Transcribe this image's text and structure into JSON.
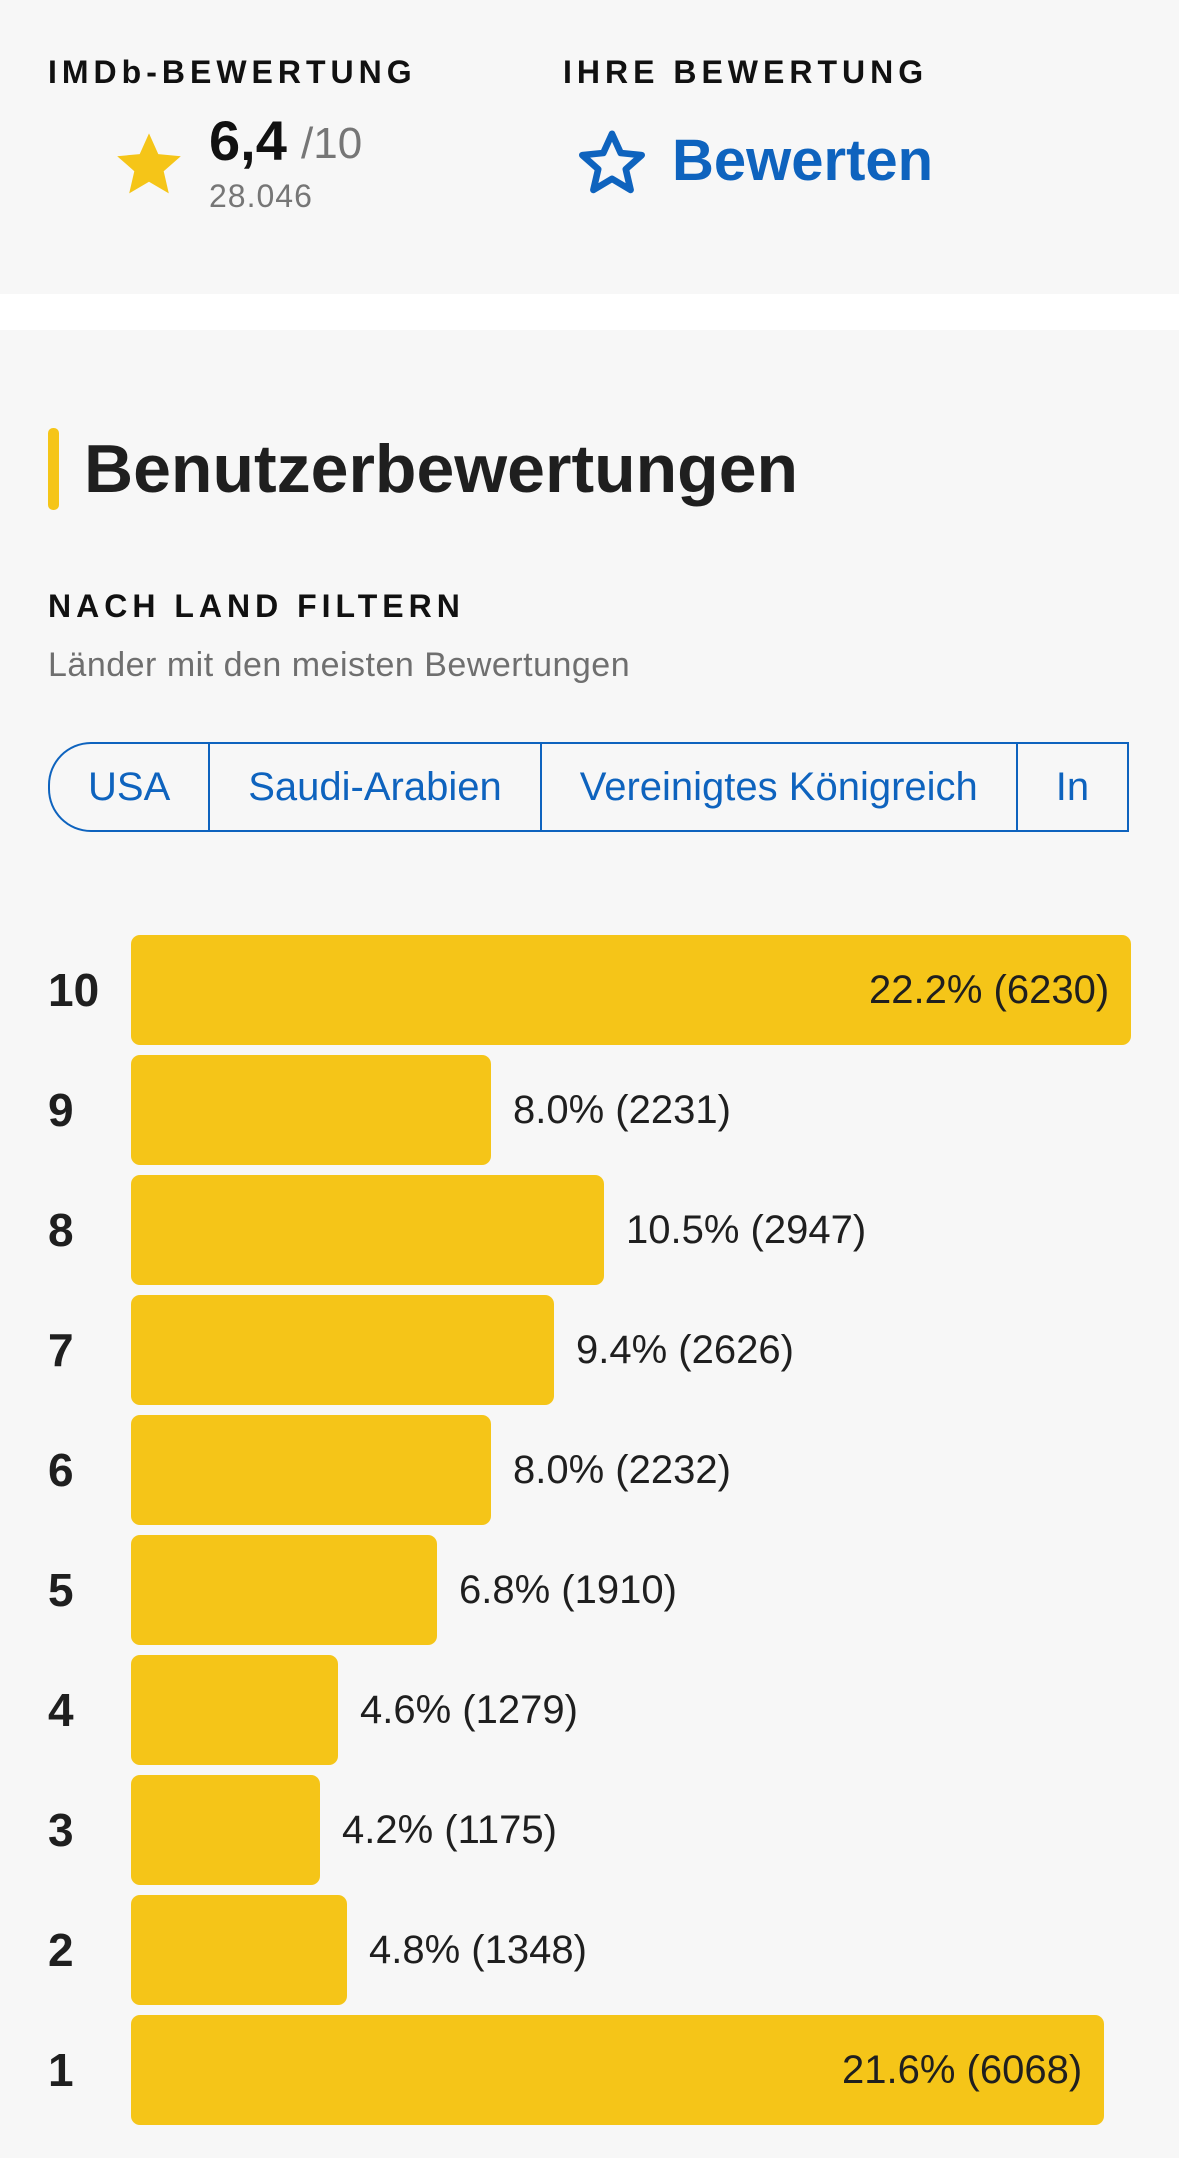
{
  "header": {
    "imdb_label": "IMDb-BEWERTUNG",
    "your_label": "IHRE BEWERTUNG",
    "rating_value": "6,4",
    "rating_max": "/10",
    "rating_count": "28.046",
    "rate_label": "Bewerten",
    "star_icon": "star-filled-icon",
    "rate_icon": "star-outline-icon",
    "colors": {
      "accent": "#f5c518",
      "link": "#0e63be"
    }
  },
  "ratings": {
    "title": "Benutzerbewertungen",
    "filter_title": "NACH LAND FILTERN",
    "filter_subtitle": "Länder mit den meisten Bewertungen",
    "countries": [
      "USA",
      "Saudi-Arabien",
      "Vereinigtes Königreich",
      "In"
    ]
  },
  "chart_data": {
    "type": "bar",
    "orientation": "horizontal",
    "categories": [
      "10",
      "9",
      "8",
      "7",
      "6",
      "5",
      "4",
      "3",
      "2",
      "1"
    ],
    "values": [
      22.2,
      8.0,
      10.5,
      9.4,
      8.0,
      6.8,
      4.6,
      4.2,
      4.8,
      21.6
    ],
    "counts": [
      6230,
      2231,
      2947,
      2626,
      2232,
      1910,
      1279,
      1175,
      1348,
      6068
    ],
    "labels": [
      "22.2% (6230)",
      "8.0% (2231)",
      "10.5% (2947)",
      "9.4% (2626)",
      "8.0% (2232)",
      "6.8% (1910)",
      "4.6% (1279)",
      "4.2% (1175)",
      "4.8% (1348)",
      "21.6% (6068)"
    ],
    "color": "#f5c518"
  }
}
